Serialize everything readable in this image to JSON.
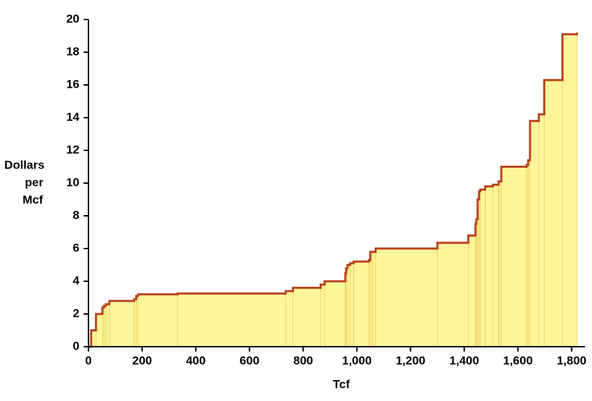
{
  "chart_data": {
    "type": "step-area",
    "xlabel": "Tcf",
    "ylabel": [
      "Dollars",
      "per",
      "Mcf"
    ],
    "x": [
      0,
      10,
      28,
      52,
      58,
      65,
      78,
      170,
      178,
      185,
      332,
      735,
      762,
      865,
      880,
      957,
      960,
      965,
      975,
      988,
      1045,
      1050,
      1058,
      1070,
      1300,
      1415,
      1442,
      1445,
      1450,
      1455,
      1460,
      1478,
      1507,
      1528,
      1530,
      1538,
      1632,
      1638,
      1645,
      1678,
      1698,
      1766,
      1820
    ],
    "values": [
      0,
      1,
      2,
      2.4,
      2.5,
      2.6,
      2.8,
      2.9,
      3.1,
      3.2,
      3.25,
      3.4,
      3.6,
      3.8,
      4.0,
      4.5,
      4.8,
      5.0,
      5.1,
      5.2,
      5.3,
      5.8,
      5.8,
      6.0,
      6.35,
      6.8,
      7.5,
      7.8,
      9.0,
      9.5,
      9.6,
      9.8,
      9.9,
      10.1,
      10.1,
      11.0,
      11.1,
      11.4,
      13.8,
      14.2,
      16.3,
      19.1,
      19.2
    ],
    "fill": "#fdf59a",
    "line_color": "#b8431d",
    "step_line_color": "#f0d060",
    "xlim": [
      0,
      1850
    ],
    "xticks": [
      0,
      200,
      400,
      600,
      800,
      {
        "value": 1000,
        "label": "1,000"
      },
      {
        "value": 1200,
        "label": "1,200"
      },
      {
        "value": 1400,
        "label": "1,400"
      },
      {
        "value": 1600,
        "label": "1,600"
      },
      {
        "value": 1800,
        "label": "1,800"
      }
    ],
    "ylim": [
      0,
      20
    ],
    "yticks": [
      0,
      2,
      4,
      6,
      8,
      10,
      12,
      14,
      16,
      18,
      20
    ]
  }
}
